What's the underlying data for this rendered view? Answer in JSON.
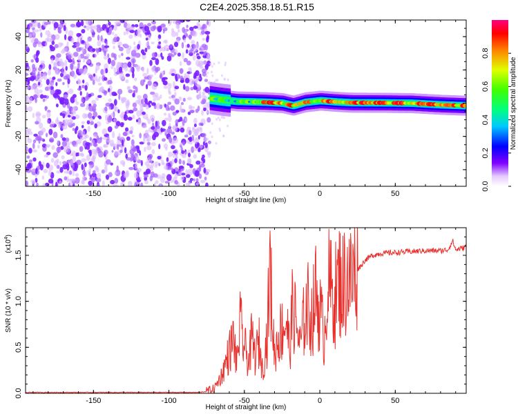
{
  "title": "C2E4.2025.358.18.51.R15",
  "colors": {
    "snr_line": "#e8302c",
    "frame": "#000000"
  },
  "chart_data": [
    {
      "type": "heatmap",
      "panel": "top",
      "xlabel": "Height of straight line (km)",
      "ylabel": "Frequency (Hz)",
      "xlim": [
        -195,
        97
      ],
      "ylim": [
        -50,
        50
      ],
      "xticks": [
        -150,
        -100,
        -50,
        0,
        50
      ],
      "yticks": [
        -40,
        -20,
        0,
        20,
        40
      ],
      "colorbar": {
        "label": "Normalized spectral amplitude",
        "range": [
          0,
          1
        ],
        "ticks": [
          "0.0",
          "0.2",
          "0.4",
          "0.6",
          "0.8"
        ]
      },
      "description_data": {
        "noise_region_x": [
          -195,
          -73
        ],
        "signal_region_x": [
          -73,
          97
        ],
        "signal_center_hz": [
          [
            -73,
            3
          ],
          [
            -65,
            2
          ],
          [
            -55,
            1
          ],
          [
            -45,
            0.8
          ],
          [
            -35,
            0.5
          ],
          [
            -25,
            0
          ],
          [
            -18,
            -1.5
          ],
          [
            -10,
            0.5
          ],
          [
            0,
            1.5
          ],
          [
            10,
            0.8
          ],
          [
            20,
            0.3
          ],
          [
            40,
            0.2
          ],
          [
            60,
            0
          ],
          [
            80,
            -1
          ],
          [
            95,
            -1.5
          ]
        ]
      }
    },
    {
      "type": "line",
      "panel": "bottom",
      "xlabel": "Height of straight line (km)",
      "ylabel": "SNR (10 * v/v)",
      "scale_label": "(x10",
      "scale_exp": "4",
      "scale_close": ")",
      "xlim": [
        -195,
        97
      ],
      "ylim": [
        0,
        1.8
      ],
      "xticks": [
        -150,
        -100,
        -50,
        0,
        50
      ],
      "yticks": [
        "0.0",
        "0.5",
        "1.0",
        "1.5"
      ],
      "series": [
        {
          "name": "SNR",
          "x": [
            -195,
            -150,
            -100,
            -80,
            -75,
            -70,
            -65,
            -60,
            -57,
            -55,
            -53,
            -50,
            -47,
            -45,
            -43,
            -40,
            -38,
            -35,
            -33,
            -30,
            -28,
            -25,
            -22,
            -20,
            -18,
            -15,
            -13,
            -10,
            -8,
            -5,
            -3,
            0,
            3,
            5,
            8,
            10,
            13,
            15,
            18,
            20,
            23,
            25,
            28,
            30,
            35,
            40,
            50,
            60,
            70,
            80,
            85,
            88,
            90,
            95,
            97
          ],
          "values": [
            0.01,
            0.01,
            0.01,
            0.01,
            0.02,
            0.05,
            0.2,
            0.45,
            0.6,
            0.3,
            0.75,
            0.5,
            0.35,
            0.6,
            0.4,
            0.55,
            0.25,
            0.6,
            1.33,
            0.4,
            0.6,
            0.7,
            0.8,
            0.45,
            0.95,
            0.7,
            0.5,
            0.85,
            0.95,
            0.8,
            1.1,
            0.9,
            0.6,
            1.2,
            1.1,
            1.05,
            1.25,
            1.15,
            1.3,
            1.2,
            1.32,
            1.35,
            1.4,
            1.45,
            1.5,
            1.52,
            1.53,
            1.54,
            1.55,
            1.55,
            1.56,
            1.66,
            1.56,
            1.58,
            1.6
          ]
        }
      ]
    }
  ]
}
